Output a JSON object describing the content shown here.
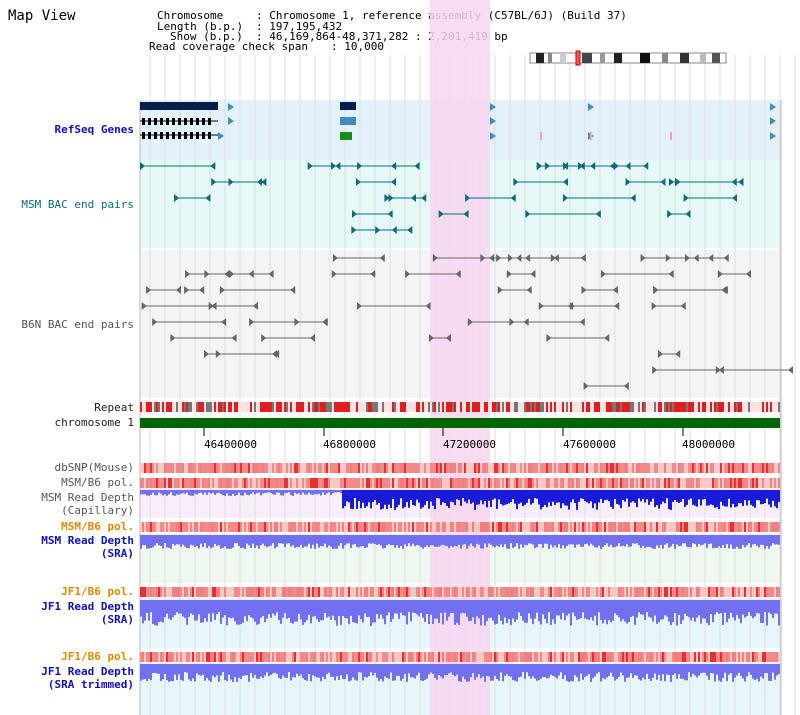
{
  "page": {
    "title": "Map View"
  },
  "header": {
    "chromosome_label": "Chromosome",
    "chromosome_value": ": Chromosome 1, reference assembly (C57BL/6J) (Build 37)",
    "length_label": "Length (b.p.)",
    "length_value": ": 197,195,432",
    "show_label": "Show (b.p.)",
    "show_value": ": 46,169,864-48,371,282 : 2,201,419 bp",
    "span_label": "Read coverage check span",
    "span_value": ": 10,000"
  },
  "tracks": {
    "refseq": "RefSeq Genes",
    "msm_bac": "MSM BAC end pairs",
    "b6n_bac": "B6N BAC end pairs",
    "repeat": "Repeat",
    "chromosome": "chromosome 1",
    "dbsnp": "dbSNP(Mouse)",
    "msm_b6_pol": "MSM/B6 pol.",
    "msm_depth_cap_1": "MSM Read Depth",
    "msm_depth_cap_2": "(Capillary)",
    "msm_b6_pol_2": "MSM/B6 pol.",
    "msm_depth_sra_1": "MSM Read Depth",
    "msm_depth_sra_2": "(SRA)",
    "jf1_b6_pol": "JF1/B6 pol.",
    "jf1_depth_sra_1": "JF1 Read Depth",
    "jf1_depth_sra_2": "(SRA)",
    "jf1_b6_pol_2": "JF1/B6 pol.",
    "jf1_depth_trim_1": "JF1 Read Depth",
    "jf1_depth_trim_2": "(SRA trimmed)"
  },
  "axis": {
    "ticks": [
      "46400000",
      "46800000",
      "47200000",
      "47600000",
      "48000000"
    ]
  },
  "colors": {
    "highlight": "#f7d6ef",
    "chromosome_bar": "#006600",
    "depth_blue": "#1a1ad9",
    "depth_light": "#7070f0",
    "pol_red": "#f28a8a"
  }
}
